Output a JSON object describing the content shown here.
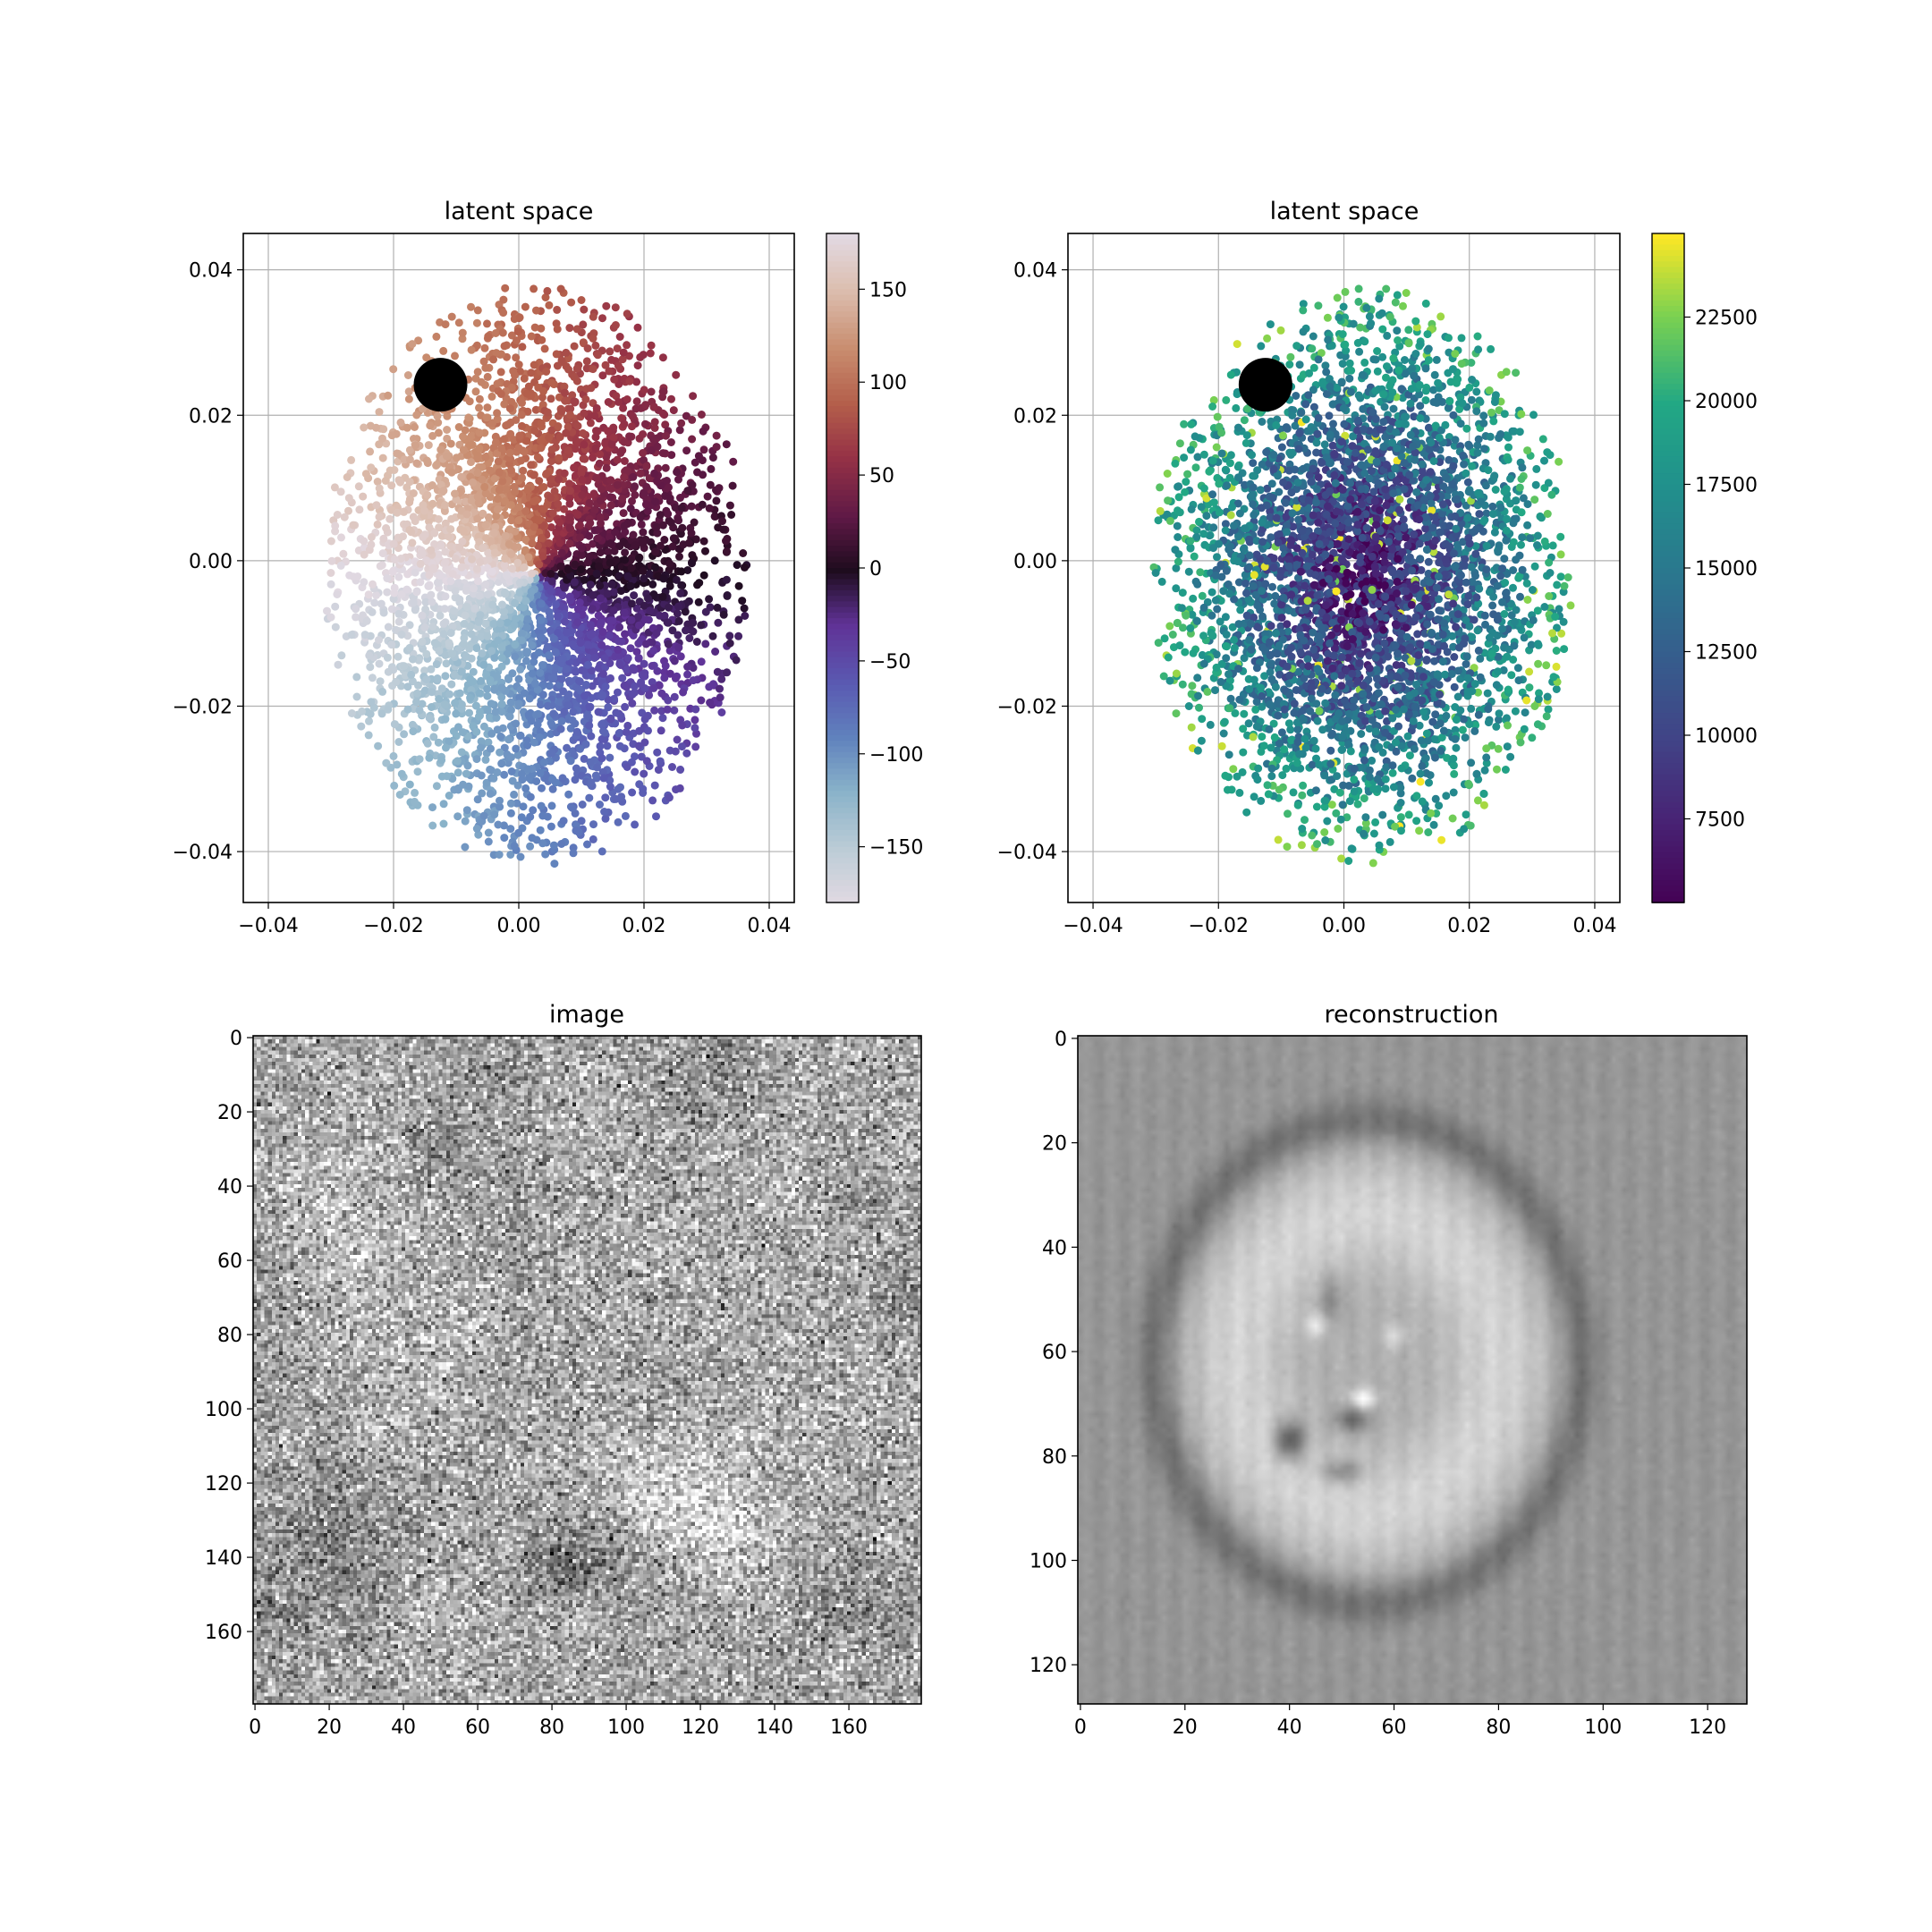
{
  "chart_data": [
    {
      "type": "scatter",
      "title": "latent space",
      "xlim": [
        -0.044,
        0.044
      ],
      "ylim": [
        -0.047,
        0.045
      ],
      "xticks": [
        -0.04,
        -0.02,
        0.0,
        0.02,
        0.04
      ],
      "xtick_labels": [
        "−0.04",
        "−0.02",
        "0.00",
        "0.02",
        "0.04"
      ],
      "yticks": [
        -0.04,
        -0.02,
        0.0,
        0.02,
        0.04
      ],
      "ytick_labels": [
        "−0.04",
        "−0.02",
        "0.00",
        "0.02",
        "0.04"
      ],
      "grid": true,
      "n_points": 4000,
      "point_cloud": {
        "center": [
          0.003,
          -0.002
        ],
        "radius_x": 0.034,
        "radius_y": 0.04
      },
      "color_by": "angle",
      "colormap": "twilight_shifted",
      "colorbar": {
        "range": [
          -180,
          180
        ],
        "ticks": [
          150,
          100,
          50,
          0,
          -50,
          -100,
          -150
        ],
        "tick_labels": [
          "150",
          "100",
          "50",
          "0",
          "−50",
          "−100",
          "−150"
        ]
      },
      "highlight_point": {
        "x": -0.0125,
        "y": 0.0242,
        "color": "#000000"
      }
    },
    {
      "type": "scatter",
      "title": "latent space",
      "xlim": [
        -0.044,
        0.044
      ],
      "ylim": [
        -0.047,
        0.045
      ],
      "xticks": [
        -0.04,
        -0.02,
        0.0,
        0.02,
        0.04
      ],
      "xtick_labels": [
        "−0.04",
        "−0.02",
        "0.00",
        "0.02",
        "0.04"
      ],
      "yticks": [
        -0.04,
        -0.02,
        0.0,
        0.02,
        0.04
      ],
      "ytick_labels": [
        "−0.04",
        "−0.02",
        "0.00",
        "0.02",
        "0.04"
      ],
      "grid": true,
      "n_points": 4000,
      "point_cloud": {
        "center": [
          0.003,
          -0.002
        ],
        "radius_x": 0.034,
        "radius_y": 0.04
      },
      "color_by": "radius",
      "colormap": "viridis",
      "colorbar": {
        "range": [
          5000,
          25000
        ],
        "ticks": [
          22500,
          20000,
          17500,
          15000,
          12500,
          10000,
          7500
        ],
        "tick_labels": [
          "22500",
          "20000",
          "17500",
          "15000",
          "12500",
          "10000",
          "7500"
        ]
      },
      "highlight_point": {
        "x": -0.0125,
        "y": 0.0242,
        "color": "#000000"
      }
    },
    {
      "type": "heatmap",
      "title": "image",
      "colormap": "gray",
      "width": 180,
      "height": 180,
      "xticks": [
        0,
        20,
        40,
        60,
        80,
        100,
        120,
        140,
        160
      ],
      "xtick_labels": [
        "0",
        "20",
        "40",
        "60",
        "80",
        "100",
        "120",
        "140",
        "160"
      ],
      "yticks": [
        0,
        20,
        40,
        60,
        80,
        100,
        120,
        140,
        160
      ],
      "ytick_labels": [
        "0",
        "20",
        "40",
        "60",
        "80",
        "100",
        "120",
        "140",
        "160"
      ],
      "content": "noisy grayscale particle image"
    },
    {
      "type": "heatmap",
      "title": "reconstruction",
      "colormap": "gray",
      "width": 128,
      "height": 128,
      "xticks": [
        0,
        20,
        40,
        60,
        80,
        100,
        120
      ],
      "xtick_labels": [
        "0",
        "20",
        "40",
        "60",
        "80",
        "100",
        "120"
      ],
      "yticks": [
        0,
        20,
        40,
        60,
        80,
        100,
        120
      ],
      "ytick_labels": [
        "0",
        "20",
        "40",
        "60",
        "80",
        "100",
        "120"
      ],
      "content": "smooth blob reconstruction with bright ring and dark center features"
    }
  ]
}
